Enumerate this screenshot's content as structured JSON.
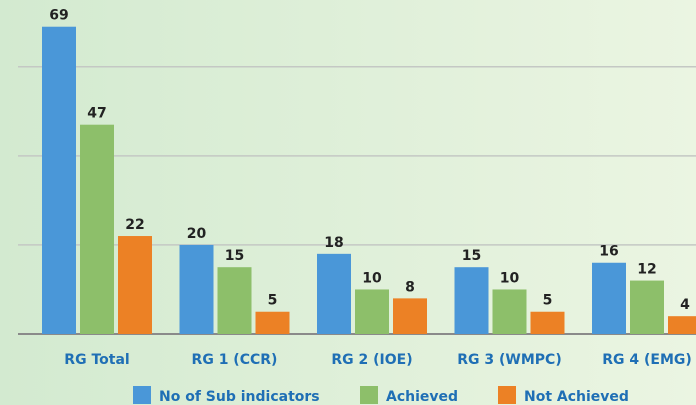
{
  "chart_data": {
    "type": "bar",
    "categories": [
      "RG Total",
      "RG 1 (CCR)",
      "RG 2 (IOE)",
      "RG 3 (WMPC)",
      "RG 4 (EMG)"
    ],
    "series": [
      {
        "name": "No of Sub indicators",
        "color": "#4a97d8",
        "values": [
          69,
          20,
          18,
          15,
          16
        ]
      },
      {
        "name": "Achieved",
        "color": "#8dbf6a",
        "values": [
          47,
          15,
          10,
          10,
          12
        ]
      },
      {
        "name": "Not Achieved",
        "color": "#ec8125",
        "values": [
          22,
          5,
          8,
          5,
          4
        ]
      }
    ],
    "ylim": [
      0,
      75
    ],
    "yticks": [
      0,
      20,
      40,
      60
    ],
    "grid": true,
    "legend": "bottom"
  }
}
